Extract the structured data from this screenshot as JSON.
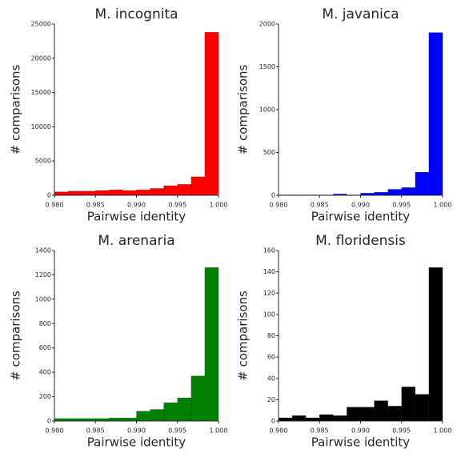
{
  "chart_data": [
    {
      "type": "histogram",
      "title": "M. incognita",
      "x_label": "Pairwise identity",
      "y_label": "# comparisons",
      "color": "#ff0000",
      "bins": [
        0.98,
        0.98167,
        0.98333,
        0.985,
        0.98667,
        0.98833,
        0.99,
        0.99167,
        0.99333,
        0.995,
        0.99667,
        0.99833,
        1.0
      ],
      "values": [
        500,
        600,
        600,
        700,
        800,
        700,
        800,
        1000,
        1400,
        1600,
        2700,
        23800
      ],
      "xlim": [
        0.98,
        1.0
      ],
      "ylim": [
        0,
        25000
      ],
      "xticks": [
        {
          "value": 0.98,
          "label": "0.980"
        },
        {
          "value": 0.985,
          "label": "0.985"
        },
        {
          "value": 0.99,
          "label": "0.990"
        },
        {
          "value": 0.995,
          "label": "0.995"
        },
        {
          "value": 1.0,
          "label": "1.000"
        }
      ],
      "yticks": [
        0,
        5000,
        10000,
        15000,
        20000,
        25000
      ]
    },
    {
      "type": "histogram",
      "title": "M. javanica",
      "x_label": "Pairwise identity",
      "y_label": "# comparisons",
      "color": "#0000ff",
      "bins": [
        0.98,
        0.98167,
        0.98333,
        0.985,
        0.98667,
        0.98833,
        0.99,
        0.99167,
        0.99333,
        0.995,
        0.99667,
        0.99833,
        1.0
      ],
      "values": [
        5,
        5,
        5,
        5,
        15,
        5,
        25,
        35,
        70,
        90,
        270,
        1900
      ],
      "xlim": [
        0.98,
        1.0
      ],
      "ylim": [
        0,
        2000
      ],
      "xticks": [
        {
          "value": 0.98,
          "label": "0.980"
        },
        {
          "value": 0.985,
          "label": "0.985"
        },
        {
          "value": 0.99,
          "label": "0.990"
        },
        {
          "value": 0.995,
          "label": "0.995"
        },
        {
          "value": 1.0,
          "label": "1.000"
        }
      ],
      "yticks": [
        0,
        500,
        1000,
        1500,
        2000
      ]
    },
    {
      "type": "histogram",
      "title": "M. arenaria",
      "x_label": "Pairwise identity",
      "y_label": "# comparisons",
      "color": "#008000",
      "bins": [
        0.98,
        0.98167,
        0.98333,
        0.985,
        0.98667,
        0.98833,
        0.99,
        0.99167,
        0.99333,
        0.995,
        0.99667,
        0.99833,
        1.0
      ],
      "values": [
        20,
        20,
        20,
        20,
        25,
        25,
        80,
        95,
        150,
        190,
        370,
        1260
      ],
      "xlim": [
        0.98,
        1.0
      ],
      "ylim": [
        0,
        1400
      ],
      "xticks": [
        {
          "value": 0.98,
          "label": "0.980"
        },
        {
          "value": 0.985,
          "label": "0.985"
        },
        {
          "value": 0.99,
          "label": "0.990"
        },
        {
          "value": 0.995,
          "label": "0.995"
        },
        {
          "value": 1.0,
          "label": "1.000"
        }
      ],
      "yticks": [
        0,
        200,
        400,
        600,
        800,
        1000,
        1200,
        1400
      ]
    },
    {
      "type": "histogram",
      "title": "M. floridensis",
      "x_label": "Pairwise identity",
      "y_label": "# comparisons",
      "color": "#000000",
      "bins": [
        0.98,
        0.98167,
        0.98333,
        0.985,
        0.98667,
        0.98833,
        0.99,
        0.99167,
        0.99333,
        0.995,
        0.99667,
        0.99833,
        1.0
      ],
      "values": [
        3,
        5,
        3,
        6,
        5,
        13,
        13,
        19,
        14,
        32,
        25,
        144
      ],
      "xlim": [
        0.98,
        1.0
      ],
      "ylim": [
        0,
        160
      ],
      "xticks": [
        {
          "value": 0.98,
          "label": "0.980"
        },
        {
          "value": 0.985,
          "label": "0.985"
        },
        {
          "value": 0.99,
          "label": "0.990"
        },
        {
          "value": 0.995,
          "label": "0.995"
        },
        {
          "value": 1.0,
          "label": "1.000"
        }
      ],
      "yticks": [
        0,
        20,
        40,
        60,
        80,
        100,
        120,
        140,
        160
      ]
    }
  ]
}
